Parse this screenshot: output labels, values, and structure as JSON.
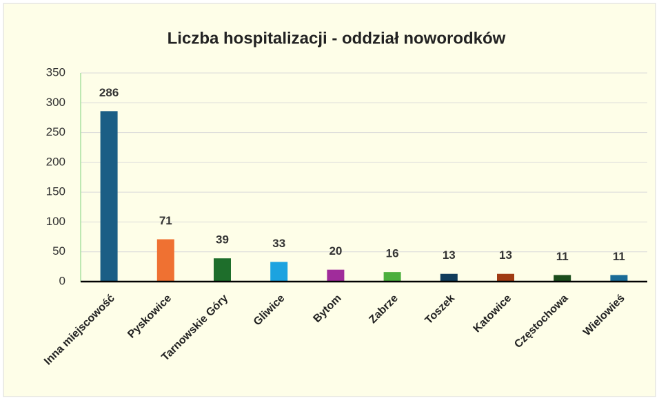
{
  "chart_data": {
    "type": "bar",
    "title": "Liczba hospitalizacji - oddział noworodków",
    "categories": [
      "Inna miejscowość",
      "Pyskowice",
      "Tarnowskie Góry",
      "Gliwice",
      "Bytom",
      "Zabrze",
      "Toszek",
      "Katowice",
      "Częstochowa",
      "Wielowieś"
    ],
    "values": [
      286,
      71,
      39,
      33,
      20,
      16,
      13,
      13,
      11,
      11
    ],
    "colors": [
      "#1b5e85",
      "#ef7132",
      "#1e6e2b",
      "#1ca3e0",
      "#a02c9b",
      "#4caf3d",
      "#103c5b",
      "#a03b13",
      "#1b4d1c",
      "#1a6b97"
    ],
    "ylim": [
      0,
      350
    ],
    "yticks": [
      0,
      50,
      100,
      150,
      200,
      250,
      300,
      350
    ],
    "grid": true
  }
}
